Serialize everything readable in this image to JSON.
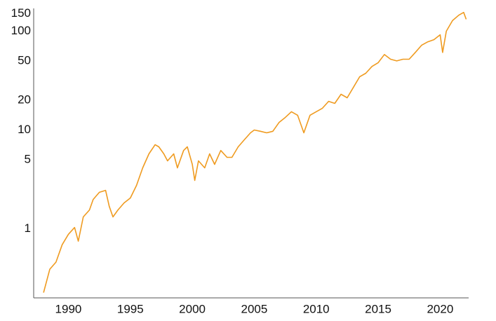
{
  "chart_data": {
    "type": "line",
    "log_y": true,
    "grid": false,
    "x": [
      1988.0,
      1988.5,
      1989.0,
      1989.5,
      1990.0,
      1990.5,
      1990.8,
      1991.2,
      1991.7,
      1992.0,
      1992.5,
      1993.0,
      1993.3,
      1993.6,
      1994.0,
      1994.5,
      1995.0,
      1995.5,
      1996.0,
      1996.5,
      1997.0,
      1997.3,
      1997.7,
      1998.0,
      1998.5,
      1998.8,
      1999.3,
      1999.6,
      2000.0,
      2000.2,
      2000.5,
      2001.0,
      2001.4,
      2001.8,
      2002.3,
      2002.8,
      2003.2,
      2003.7,
      2004.2,
      2004.7,
      2005.0,
      2005.5,
      2006.0,
      2006.5,
      2007.0,
      2007.5,
      2008.0,
      2008.5,
      2009.0,
      2009.5,
      2010.0,
      2010.5,
      2011.0,
      2011.5,
      2012.0,
      2012.5,
      2013.0,
      2013.5,
      2014.0,
      2014.5,
      2015.0,
      2015.5,
      2016.0,
      2016.5,
      2017.0,
      2017.5,
      2018.0,
      2018.5,
      2019.0,
      2019.5,
      2020.0,
      2020.2,
      2020.5,
      2021.0,
      2021.5,
      2021.9,
      2022.1
    ],
    "series": [
      {
        "color": "#ef9b20",
        "values": [
          0.226,
          0.39,
          0.46,
          0.69,
          0.88,
          1.03,
          0.75,
          1.32,
          1.55,
          1.98,
          2.34,
          2.45,
          1.69,
          1.32,
          1.55,
          1.83,
          2.05,
          2.75,
          4.14,
          5.74,
          7.1,
          6.75,
          5.74,
          4.87,
          5.74,
          4.14,
          6.2,
          6.75,
          4.49,
          3.09,
          4.87,
          4.14,
          5.74,
          4.49,
          6.2,
          5.29,
          5.29,
          6.75,
          7.96,
          9.36,
          10,
          9.7,
          9.36,
          9.7,
          11.9,
          13.4,
          15.3,
          14.1,
          9.36,
          14.1,
          15.3,
          16.6,
          19.5,
          18.6,
          23,
          21.2,
          27,
          34.5,
          37.5,
          44,
          48,
          58,
          52,
          50,
          52,
          52,
          61,
          72,
          78,
          82,
          92,
          61,
          100,
          128,
          145,
          155,
          132
        ]
      }
    ],
    "xlim": [
      1987.2,
      2022.3
    ],
    "xticks": [
      1990,
      1995,
      2000,
      2005,
      2010,
      2015,
      2020
    ],
    "ylim": [
      0.2,
      170
    ],
    "yticks": [
      1,
      5,
      10,
      20,
      50,
      100,
      150
    ]
  }
}
